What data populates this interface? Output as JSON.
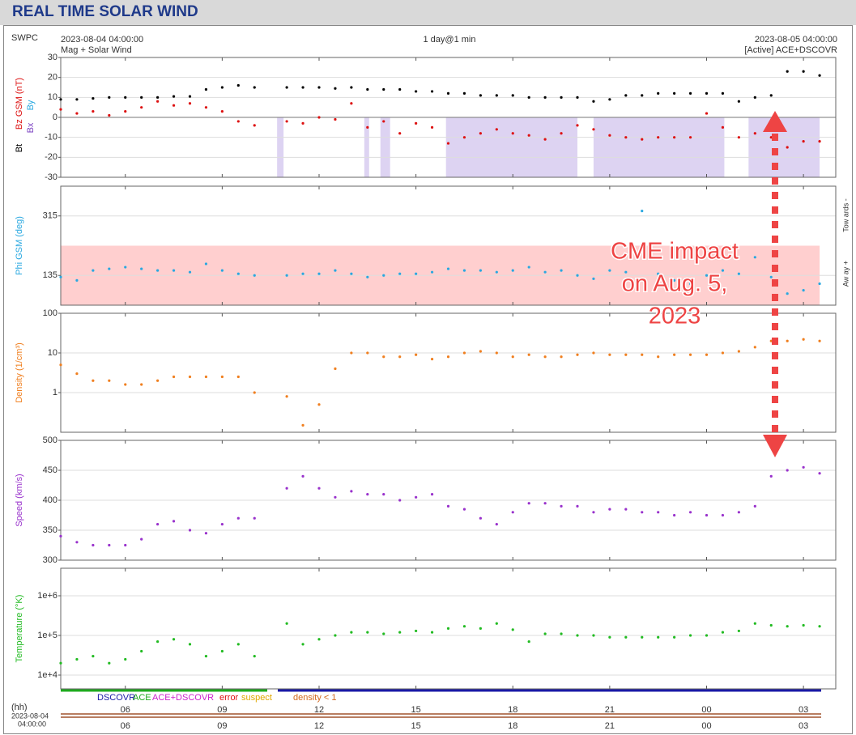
{
  "header": {
    "title": "REAL TIME SOLAR WIND"
  },
  "info": {
    "agency": "SWPC",
    "start": "2023-08-04 04:00:00",
    "product": "Mag + Solar Wind",
    "span": "1 day@1 min",
    "end": "2023-08-05 04:00:00",
    "source": "[Active] ACE+DSCOVR"
  },
  "annotation": {
    "lines": [
      "CME impact",
      "on Aug. 5,",
      "2023"
    ],
    "color": "#ee4444"
  },
  "source_legend": [
    {
      "name": "DSCOVR",
      "color": "#1a1aa6"
    },
    {
      "name": "ACE",
      "color": "#1faa1f"
    },
    {
      "name": "ACE+DSCOVR",
      "color": "#cc22cc"
    },
    {
      "name": "error",
      "color": "#dd1111"
    },
    {
      "name": "suspect",
      "color": "#e0a800"
    },
    {
      "name": "density < 1",
      "color": "#d2691e"
    }
  ],
  "time_axis": {
    "unit": "(hh)",
    "start_date": "2023-08-04",
    "start_time": "04:00:00"
  },
  "chart_data": [
    {
      "type": "scatter",
      "ylim": [
        -30,
        30
      ],
      "yticks": [
        -30,
        -20,
        -10,
        0,
        10,
        20,
        30
      ],
      "grid": true,
      "log": false,
      "xlim": [
        0,
        24
      ],
      "xticks": [
        {
          "value": 2,
          "label": "06"
        },
        {
          "value": 5,
          "label": "09"
        },
        {
          "value": 8,
          "label": "12"
        },
        {
          "value": 11,
          "label": "15"
        },
        {
          "value": 14,
          "label": "18"
        },
        {
          "value": 17,
          "label": "21"
        },
        {
          "value": 20,
          "label": "00"
        },
        {
          "value": 23,
          "label": "03"
        }
      ],
      "x": [
        0,
        0.5,
        1,
        1.5,
        2,
        2.5,
        3,
        3.5,
        4,
        4.5,
        5,
        5.5,
        6,
        6.5,
        7,
        7.5,
        8,
        8.5,
        9,
        9.5,
        10,
        10.5,
        11,
        11.5,
        12,
        12.5,
        13,
        13.5,
        14,
        14.5,
        15,
        15.5,
        16,
        16.5,
        17,
        17.5,
        18,
        18.5,
        19,
        19.5,
        20,
        20.5,
        21,
        21.5,
        22,
        22.5,
        23,
        23.5,
        24
      ],
      "series": [
        {
          "name": "Bt",
          "color": "#000000",
          "values": [
            9,
            9,
            9.5,
            10,
            10,
            10,
            10,
            10.5,
            10.5,
            14,
            15,
            16,
            15,
            null,
            15,
            15,
            15,
            14.5,
            15,
            14,
            14,
            14,
            13,
            13,
            12,
            12,
            11,
            11,
            11,
            10,
            10,
            10,
            10,
            8,
            9,
            11,
            11,
            12,
            12,
            12,
            12,
            12,
            8,
            10,
            11,
            23,
            23,
            21,
            null
          ]
        },
        {
          "name": "Bz GSM (nT)",
          "color": "#dd1111",
          "values": [
            4,
            2,
            3,
            1,
            3,
            5,
            8,
            6,
            7,
            5,
            3,
            -2,
            -4,
            null,
            -2,
            -3,
            0,
            -1,
            7,
            -5,
            -2,
            -8,
            -3,
            -5,
            -13,
            -10,
            -8,
            -6,
            -8,
            -9,
            -11,
            -8,
            -4,
            -6,
            -9,
            -10,
            -11,
            -10,
            -10,
            -10,
            2,
            -5,
            -10,
            -8,
            -10,
            -15,
            -12,
            -12,
            null
          ]
        }
      ],
      "other_labels": [
        {
          "text": "Bx",
          "color": "#7a3fc0"
        },
        {
          "text": "By",
          "color": "#29a8e0"
        }
      ],
      "shading": {
        "color": "#ddd3f2",
        "intervals": [
          [
            6.7,
            6.9
          ],
          [
            9.4,
            9.55
          ],
          [
            9.9,
            10.2
          ],
          [
            11.93,
            16.0
          ],
          [
            16.5,
            20.55
          ],
          [
            21.3,
            23.5
          ]
        ]
      }
    },
    {
      "type": "scatter",
      "ylim": [
        45,
        405
      ],
      "yticks": [
        135,
        315
      ],
      "grid": true,
      "log": false,
      "xlim": [
        0,
        24
      ],
      "xticks": [
        {
          "value": 2,
          "label": "06"
        },
        {
          "value": 5,
          "label": "09"
        },
        {
          "value": 8,
          "label": "12"
        },
        {
          "value": 11,
          "label": "15"
        },
        {
          "value": 14,
          "label": "18"
        },
        {
          "value": 17,
          "label": "21"
        },
        {
          "value": 20,
          "label": "00"
        },
        {
          "value": 23,
          "label": "03"
        }
      ],
      "x": [
        0,
        0.5,
        1,
        1.5,
        2,
        2.5,
        3,
        3.5,
        4,
        4.5,
        5,
        5.5,
        6,
        6.5,
        7,
        7.5,
        8,
        8.5,
        9,
        9.5,
        10,
        10.5,
        11,
        11.5,
        12,
        12.5,
        13,
        13.5,
        14,
        14.5,
        15,
        15.5,
        16,
        16.5,
        17,
        17.5,
        18,
        18.5,
        19,
        19.5,
        20,
        20.5,
        21,
        21.5,
        22,
        22.5,
        23,
        23.5,
        24
      ],
      "series": [
        {
          "name": "Phi GSM (deg)",
          "color": "#29a8e0",
          "values": [
            130,
            120,
            150,
            155,
            160,
            155,
            150,
            150,
            145,
            170,
            150,
            140,
            135,
            null,
            135,
            140,
            140,
            150,
            140,
            130,
            135,
            140,
            140,
            145,
            155,
            150,
            150,
            145,
            150,
            160,
            145,
            150,
            135,
            125,
            150,
            145,
            330,
            140,
            120,
            110,
            135,
            150,
            140,
            190,
            130,
            80,
            90,
            110,
            null
          ]
        }
      ],
      "right_labels": [
        "Tow ards -",
        "Aw ay +"
      ],
      "band": {
        "color": "#ffcfcf",
        "range": [
          45,
          225
        ],
        "x_range": [
          0,
          23.5
        ]
      }
    },
    {
      "type": "scatter",
      "ylim": [
        0.1,
        100
      ],
      "yticks": [
        1,
        10,
        100
      ],
      "grid": true,
      "log": true,
      "xlim": [
        0,
        24
      ],
      "xticks": [
        {
          "value": 2,
          "label": "06"
        },
        {
          "value": 5,
          "label": "09"
        },
        {
          "value": 8,
          "label": "12"
        },
        {
          "value": 11,
          "label": "15"
        },
        {
          "value": 14,
          "label": "18"
        },
        {
          "value": 17,
          "label": "21"
        },
        {
          "value": 20,
          "label": "00"
        },
        {
          "value": 23,
          "label": "03"
        }
      ],
      "x": [
        0,
        0.5,
        1,
        1.5,
        2,
        2.5,
        3,
        3.5,
        4,
        4.5,
        5,
        5.5,
        6,
        6.5,
        7,
        7.5,
        8,
        8.5,
        9,
        9.5,
        10,
        10.5,
        11,
        11.5,
        12,
        12.5,
        13,
        13.5,
        14,
        14.5,
        15,
        15.5,
        16,
        16.5,
        17,
        17.5,
        18,
        18.5,
        19,
        19.5,
        20,
        20.5,
        21,
        21.5,
        22,
        22.5,
        23,
        23.5,
        24
      ],
      "series": [
        {
          "name": "Density (1/cm³)",
          "color": "#f07f1f",
          "values": [
            5,
            3,
            2,
            2,
            1.6,
            1.6,
            2,
            2.5,
            2.5,
            2.5,
            2.5,
            2.5,
            1,
            null,
            0.8,
            0.15,
            0.5,
            4,
            10,
            10,
            8,
            8,
            9,
            7,
            8,
            10,
            11,
            10,
            8,
            9,
            8,
            8,
            9,
            10,
            9,
            9,
            9,
            8,
            9,
            9,
            9,
            10,
            11,
            14,
            20,
            20,
            22,
            20,
            null
          ]
        }
      ]
    },
    {
      "type": "scatter",
      "ylim": [
        300,
        500
      ],
      "yticks": [
        300,
        350,
        400,
        450,
        500
      ],
      "grid": true,
      "log": false,
      "xlim": [
        0,
        24
      ],
      "xticks": [
        {
          "value": 2,
          "label": "06"
        },
        {
          "value": 5,
          "label": "09"
        },
        {
          "value": 8,
          "label": "12"
        },
        {
          "value": 11,
          "label": "15"
        },
        {
          "value": 14,
          "label": "18"
        },
        {
          "value": 17,
          "label": "21"
        },
        {
          "value": 20,
          "label": "00"
        },
        {
          "value": 23,
          "label": "03"
        }
      ],
      "x": [
        0,
        0.5,
        1,
        1.5,
        2,
        2.5,
        3,
        3.5,
        4,
        4.5,
        5,
        5.5,
        6,
        6.5,
        7,
        7.5,
        8,
        8.5,
        9,
        9.5,
        10,
        10.5,
        11,
        11.5,
        12,
        12.5,
        13,
        13.5,
        14,
        14.5,
        15,
        15.5,
        16,
        16.5,
        17,
        17.5,
        18,
        18.5,
        19,
        19.5,
        20,
        20.5,
        21,
        21.5,
        22,
        22.5,
        23,
        23.5,
        24
      ],
      "series": [
        {
          "name": "Speed (km/s)",
          "color": "#9932cc",
          "values": [
            340,
            330,
            325,
            325,
            325,
            335,
            360,
            365,
            350,
            345,
            360,
            370,
            370,
            null,
            420,
            440,
            420,
            405,
            415,
            410,
            410,
            400,
            405,
            410,
            390,
            385,
            370,
            360,
            380,
            395,
            395,
            390,
            390,
            380,
            385,
            385,
            380,
            380,
            375,
            380,
            375,
            375,
            380,
            390,
            440,
            450,
            455,
            445,
            null
          ]
        }
      ]
    },
    {
      "type": "scatter",
      "ylim": [
        4500,
        4940000
      ],
      "yticks": [
        {
          "value": 10000,
          "label": "1e+4"
        },
        {
          "value": 100000,
          "label": "1e+5"
        },
        {
          "value": 1000000,
          "label": "1e+6"
        }
      ],
      "grid": true,
      "log": true,
      "xlim": [
        0,
        24
      ],
      "xticks": [
        {
          "value": 2,
          "label": "06"
        },
        {
          "value": 5,
          "label": "09"
        },
        {
          "value": 8,
          "label": "12"
        },
        {
          "value": 11,
          "label": "15"
        },
        {
          "value": 14,
          "label": "18"
        },
        {
          "value": 17,
          "label": "21"
        },
        {
          "value": 20,
          "label": "00"
        },
        {
          "value": 23,
          "label": "03"
        }
      ],
      "x": [
        0,
        0.5,
        1,
        1.5,
        2,
        2.5,
        3,
        3.5,
        4,
        4.5,
        5,
        5.5,
        6,
        6.5,
        7,
        7.5,
        8,
        8.5,
        9,
        9.5,
        10,
        10.5,
        11,
        11.5,
        12,
        12.5,
        13,
        13.5,
        14,
        14.5,
        15,
        15.5,
        16,
        16.5,
        17,
        17.5,
        18,
        18.5,
        19,
        19.5,
        20,
        20.5,
        21,
        21.5,
        22,
        22.5,
        23,
        23.5,
        24
      ],
      "series": [
        {
          "name": "Temperature (°K)",
          "color": "#22bb22",
          "values": [
            20000,
            25000,
            30000,
            20000,
            25000,
            40000,
            70000,
            80000,
            60000,
            30000,
            40000,
            60000,
            30000,
            null,
            200000,
            60000,
            80000,
            100000,
            120000,
            120000,
            110000,
            120000,
            130000,
            120000,
            150000,
            170000,
            150000,
            200000,
            140000,
            70000,
            110000,
            110000,
            100000,
            100000,
            90000,
            90000,
            90000,
            90000,
            90000,
            100000,
            100000,
            120000,
            130000,
            200000,
            180000,
            170000,
            180000,
            170000,
            null
          ]
        }
      ]
    }
  ]
}
